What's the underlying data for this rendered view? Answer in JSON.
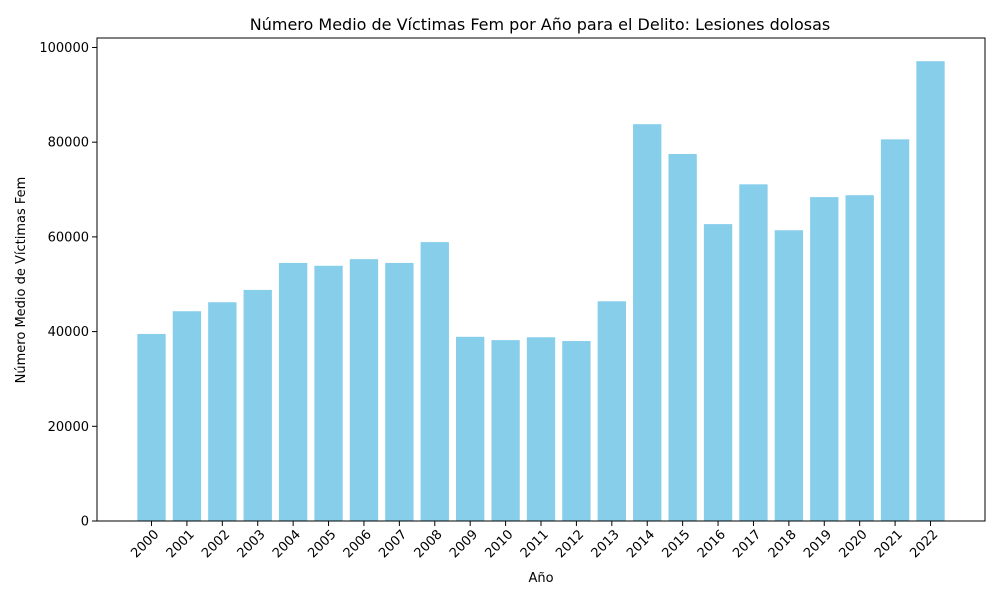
{
  "chart_data": {
    "type": "bar",
    "title": "Número Medio de Víctimas Fem por Año para el Delito: Lesiones dolosas",
    "xlabel": "Año",
    "ylabel": "Número Medio de Víctimas Fem",
    "categories": [
      "2000",
      "2001",
      "2002",
      "2003",
      "2004",
      "2005",
      "2006",
      "2007",
      "2008",
      "2009",
      "2010",
      "2011",
      "2012",
      "2013",
      "2014",
      "2015",
      "2016",
      "2017",
      "2018",
      "2019",
      "2020",
      "2021",
      "2022"
    ],
    "values": [
      39500,
      44300,
      46200,
      48800,
      54500,
      53900,
      55300,
      54500,
      58900,
      38900,
      38200,
      38800,
      38000,
      46400,
      83800,
      77500,
      62700,
      71100,
      61400,
      68400,
      68800,
      80600,
      97100
    ],
    "ylim": [
      0,
      102000
    ],
    "yticks": [
      0,
      20000,
      40000,
      60000,
      80000,
      100000
    ],
    "bar_color": "#87CEEB",
    "grid": false
  }
}
